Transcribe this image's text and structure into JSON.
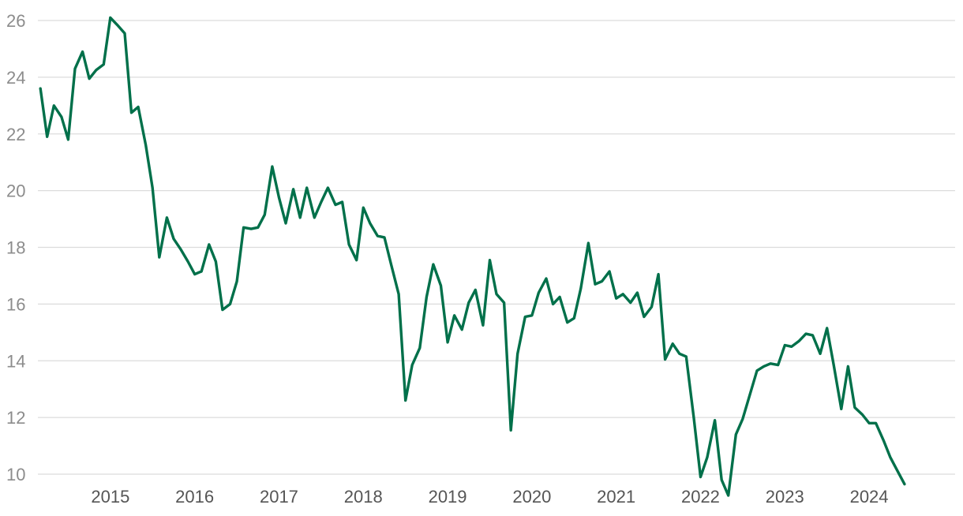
{
  "chart_data": {
    "type": "line",
    "title": "",
    "xlabel": "",
    "ylabel": "",
    "ylim": [
      9.5,
      26.5
    ],
    "yticks": [
      10,
      12,
      14,
      16,
      18,
      20,
      22,
      24,
      26
    ],
    "xticks": [
      "2015",
      "2016",
      "2017",
      "2018",
      "2019",
      "2020",
      "2021",
      "2022",
      "2023",
      "2024"
    ],
    "xlim": [
      2014.64,
      2025.52
    ],
    "grid": true,
    "legend": "none",
    "series_color": "#00704a",
    "gridline_color": "#dcdcdc",
    "series": [
      {
        "x": [
          2014.67,
          2014.75,
          2014.83,
          2014.92,
          2015.0,
          2015.08,
          2015.17,
          2015.25,
          2015.33,
          2015.42,
          2015.5,
          2015.58,
          2015.67,
          2015.75,
          2015.83,
          2015.92,
          2016.0,
          2016.08,
          2016.17,
          2016.25,
          2016.33,
          2016.42,
          2016.5,
          2016.58,
          2016.67,
          2016.75,
          2016.83,
          2016.92,
          2017.0,
          2017.08,
          2017.17,
          2017.25,
          2017.33,
          2017.42,
          2017.5,
          2017.58,
          2017.67,
          2017.75,
          2017.83,
          2017.92,
          2018.0,
          2018.08,
          2018.17,
          2018.25,
          2018.33,
          2018.42,
          2018.5,
          2018.58,
          2018.67,
          2018.75,
          2018.83,
          2018.92,
          2019.0,
          2019.08,
          2019.17,
          2019.25,
          2019.33,
          2019.42,
          2019.5,
          2019.58,
          2019.67,
          2019.75,
          2019.83,
          2019.92,
          2020.0,
          2020.08,
          2020.17,
          2020.25,
          2020.33,
          2020.42,
          2020.5,
          2020.58,
          2020.67,
          2020.75,
          2020.83,
          2020.92,
          2021.0,
          2021.08,
          2021.17,
          2021.25,
          2021.33,
          2021.42,
          2021.5,
          2021.58,
          2021.67,
          2021.75,
          2021.83,
          2021.92,
          2022.0,
          2022.08,
          2022.17,
          2022.25,
          2022.33,
          2022.42,
          2022.5,
          2022.58,
          2022.67,
          2022.75,
          2022.83,
          2022.92,
          2023.0,
          2023.08,
          2023.17,
          2023.25,
          2023.33,
          2023.42,
          2023.5,
          2023.58,
          2023.67,
          2023.75,
          2023.83,
          2023.92,
          2024.0,
          2024.08,
          2024.17,
          2024.25,
          2024.33,
          2024.42,
          2024.5,
          2024.58,
          2024.67,
          2024.75,
          2024.83,
          2024.92
        ],
        "values": [
          23.6,
          21.9,
          23.0,
          22.6,
          21.8,
          24.3,
          24.9,
          23.95,
          24.25,
          24.45,
          26.1,
          25.85,
          25.55,
          22.75,
          22.95,
          21.6,
          20.1,
          17.65,
          19.05,
          18.3,
          17.95,
          17.5,
          17.05,
          17.15,
          18.1,
          17.5,
          15.8,
          16.0,
          16.8,
          18.7,
          18.65,
          18.7,
          19.15,
          20.85,
          19.75,
          18.85,
          20.05,
          19.05,
          20.1,
          19.05,
          19.6,
          20.1,
          19.5,
          19.6,
          18.1,
          17.55,
          19.4,
          18.85,
          18.4,
          18.35,
          17.4,
          16.35,
          12.6,
          13.85,
          14.45,
          16.25,
          17.4,
          16.65,
          14.65,
          15.6,
          15.1,
          16.05,
          16.5,
          15.25,
          17.55,
          16.35,
          16.05,
          11.55,
          14.25,
          15.55,
          15.6,
          16.4,
          16.9,
          16.0,
          16.25,
          15.35,
          15.5,
          16.55,
          18.15,
          16.7,
          16.8,
          17.15,
          16.2,
          16.35,
          16.05,
          16.4,
          15.55,
          15.9,
          17.05,
          14.05,
          14.6,
          14.25,
          14.15,
          12.0,
          9.9,
          10.6,
          11.9,
          9.8,
          9.25,
          11.4,
          11.95,
          12.75,
          13.65,
          13.8,
          13.9,
          13.85,
          14.55,
          14.5,
          14.7,
          14.95,
          14.9,
          14.25,
          15.15,
          13.85,
          12.3,
          13.8,
          12.35,
          12.1,
          11.8,
          11.8,
          11.2,
          10.6,
          10.15,
          9.65
        ]
      }
    ]
  }
}
